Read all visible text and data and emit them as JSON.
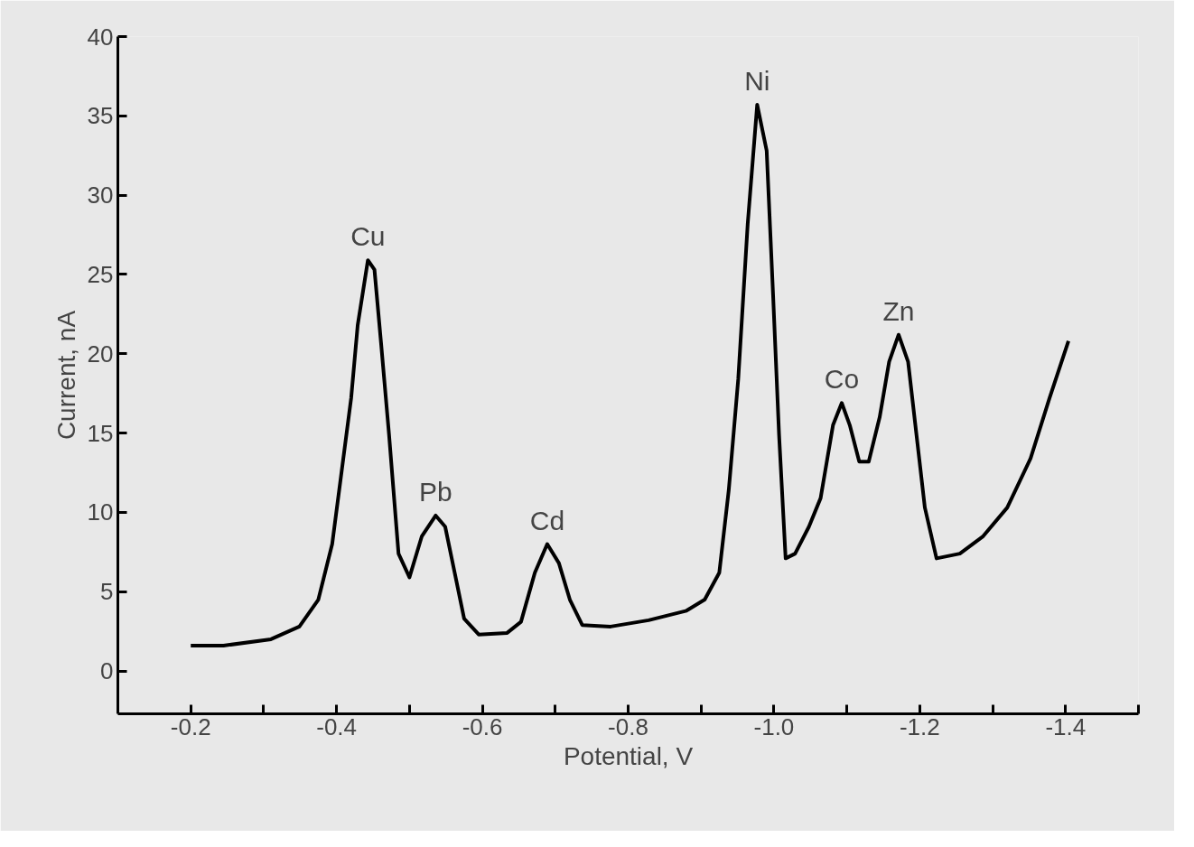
{
  "chart_data": {
    "type": "line",
    "xlabel": "Potential, V",
    "ylabel": "Current, nA",
    "x": [
      -0.2,
      -0.245,
      -0.31,
      -0.349,
      -0.375,
      -0.394,
      -0.407,
      -0.42,
      -0.429,
      -0.443,
      -0.452,
      -0.461,
      -0.472,
      -0.485,
      -0.5,
      -0.517,
      -0.536,
      -0.549,
      -0.562,
      -0.575,
      -0.595,
      -0.634,
      -0.653,
      -0.672,
      -0.689,
      -0.705,
      -0.72,
      -0.737,
      -0.776,
      -0.828,
      -0.88,
      -0.905,
      -0.925,
      -0.938,
      -0.951,
      -0.964,
      -0.977,
      -0.99,
      -0.999,
      -1.007,
      -1.016,
      -1.029,
      -1.048,
      -1.064,
      -1.081,
      -1.093,
      -1.104,
      -1.117,
      -1.13,
      -1.145,
      -1.158,
      -1.171,
      -1.184,
      -1.197,
      -1.207,
      -1.223,
      -1.255,
      -1.287,
      -1.32,
      -1.352,
      -1.378,
      -1.404
    ],
    "series": [
      {
        "color": "#000000",
        "values": [
          1.6,
          1.6,
          2.0,
          2.8,
          4.5,
          8.0,
          12.6,
          17.2,
          21.8,
          25.9,
          25.3,
          20.7,
          14.9,
          7.4,
          5.9,
          8.5,
          9.8,
          9.1,
          6.2,
          3.3,
          2.3,
          2.4,
          3.1,
          6.2,
          8.0,
          6.8,
          4.5,
          2.9,
          2.8,
          3.2,
          3.8,
          4.5,
          6.2,
          11.4,
          18.4,
          28.2,
          35.7,
          32.8,
          23.5,
          14.9,
          7.1,
          7.4,
          9.1,
          10.9,
          15.5,
          16.9,
          15.5,
          13.2,
          13.2,
          16.0,
          19.5,
          21.2,
          19.5,
          14.3,
          10.3,
          7.1,
          7.4,
          8.5,
          10.3,
          13.4,
          17.2,
          20.8
        ]
      }
    ],
    "xlim": [
      -0.1,
      -1.5
    ],
    "ylim": [
      -2.7,
      40
    ],
    "xticks": [
      -0.2,
      {
        "value": -0.3,
        "label": null
      },
      -0.4,
      {
        "value": -0.5,
        "label": null
      },
      -0.6,
      {
        "value": -0.7,
        "label": null
      },
      -0.8,
      {
        "value": -0.9,
        "label": null
      },
      {
        "value": -1.0,
        "label": "-1.0"
      },
      {
        "value": -1.1,
        "label": null
      },
      -1.2,
      {
        "value": -1.3,
        "label": null
      },
      -1.4,
      {
        "value": -1.5,
        "label": null
      }
    ],
    "yticks": [
      0,
      5,
      10,
      15,
      20,
      25,
      30,
      35,
      40
    ],
    "annotations": [
      {
        "text": "Cu",
        "x": -0.443,
        "y": 25.9
      },
      {
        "text": "Pb",
        "x": -0.536,
        "y": 9.8
      },
      {
        "text": "Cd",
        "x": -0.689,
        "y": 8.0
      },
      {
        "text": "Ni",
        "x": -0.977,
        "y": 35.7
      },
      {
        "text": "Co",
        "x": -1.093,
        "y": 16.9
      },
      {
        "text": "Zn",
        "x": -1.171,
        "y": 21.2
      }
    ],
    "line_style": "solid",
    "marker": "none"
  }
}
